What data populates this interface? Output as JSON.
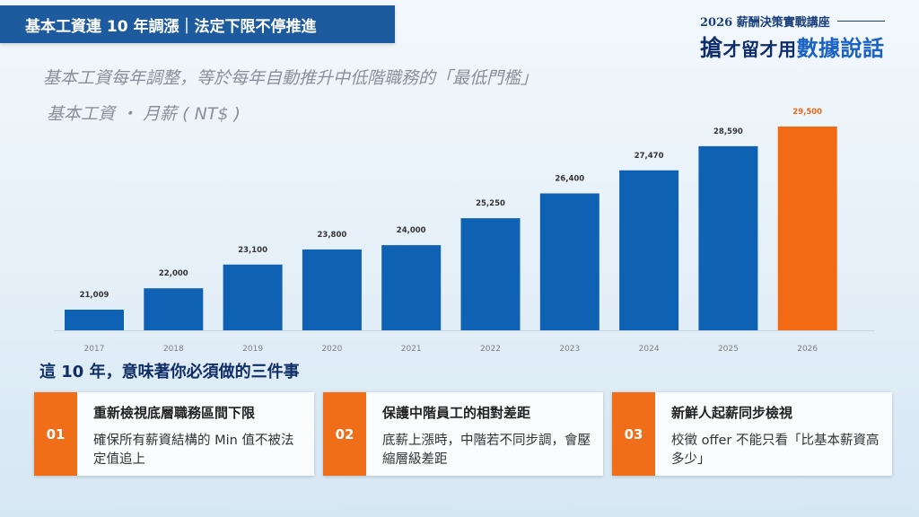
{
  "header": {
    "title": "基本工資連 10 年調漲｜法定下限不停推進",
    "brand_sub": "2026 薪酬決策實戰講座",
    "brand_main_parts": [
      "搶",
      "才留才用",
      "數據說話"
    ]
  },
  "subtitle": "基本工資每年調整，等於每年自動推升中低階職務的「最低門檻」",
  "unit_label": "基本工資 ・ 月薪 ( NT$ )",
  "chart_data": {
    "type": "bar",
    "categories": [
      "2017",
      "2018",
      "2019",
      "2020",
      "2021",
      "2022",
      "2023",
      "2024",
      "2025",
      "2026"
    ],
    "values": [
      21009,
      22000,
      23100,
      23800,
      24000,
      25250,
      26400,
      27470,
      28590,
      29500
    ],
    "value_labels": [
      "21,009",
      "22,000",
      "23,100",
      "23,800",
      "24,000",
      "25,250",
      "26,400",
      "27,470",
      "28,590",
      "29,500"
    ],
    "highlight_index": 9,
    "colors": {
      "bar": "#0f61b3",
      "highlight": "#f26b14",
      "highlight_label": "#e5681a"
    },
    "ylabel": "基本工資 ・ 月薪 ( NT$ )",
    "grid": false
  },
  "section_title": "這 10 年，意味著你必須做的三件事",
  "cards": [
    {
      "num": "01",
      "head": "重新檢視底層職務區間下限",
      "body": "確保所有薪資結構的 Min 值不被法定值追上"
    },
    {
      "num": "02",
      "head": "保護中階員工的相對差距",
      "body": "底薪上漲時，中階若不同步調，會壓縮層級差距"
    },
    {
      "num": "03",
      "head": "新鮮人起薪同步檢視",
      "body": "校徵 offer 不能只看「比基本薪資高多少」"
    }
  ]
}
